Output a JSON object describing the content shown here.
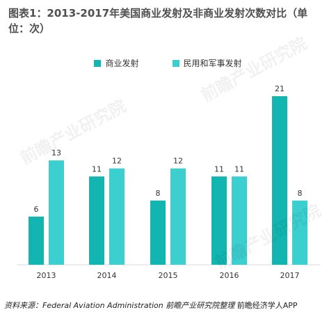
{
  "title": "图表1：2013-2017年美国商业发射及非商业发射次数对比（单位：次）",
  "source_text": "资料来源：Federal Aviation Administration 前瞻产业研究院整理",
  "source_logo": "前瞻经济学人APP",
  "watermark": "前瞻产业研究院",
  "colors": {
    "commercial": "#13b5b1",
    "noncommercial": "#3ccfcf"
  },
  "chart_data": {
    "type": "bar",
    "categories": [
      "2013",
      "2014",
      "2015",
      "2016",
      "2017"
    ],
    "series": [
      {
        "name": "商业发射",
        "values": [
          6,
          11,
          8,
          11,
          21
        ]
      },
      {
        "name": "民用和军事发射",
        "values": [
          13,
          12,
          12,
          11,
          8
        ]
      }
    ],
    "ylim": [
      0,
      23
    ],
    "grid": false,
    "legend_position": "top-center"
  }
}
